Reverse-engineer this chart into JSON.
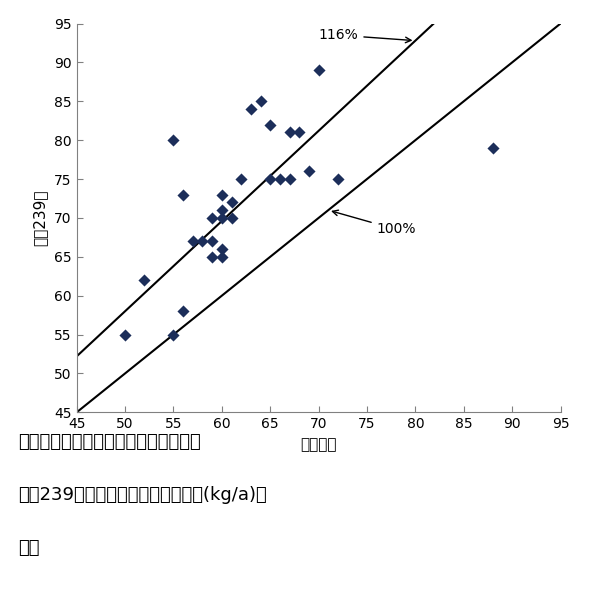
{
  "scatter_x": [
    50,
    52,
    55,
    55,
    56,
    56,
    57,
    58,
    59,
    59,
    59,
    60,
    60,
    60,
    60,
    60,
    61,
    61,
    62,
    63,
    64,
    65,
    65,
    66,
    67,
    67,
    68,
    69,
    70,
    72,
    88
  ],
  "scatter_y": [
    55,
    62,
    55,
    80,
    58,
    73,
    67,
    67,
    65,
    67,
    70,
    65,
    66,
    70,
    71,
    73,
    70,
    72,
    75,
    84,
    85,
    75,
    82,
    75,
    81,
    75,
    81,
    76,
    89,
    75,
    79
  ],
  "xlim": [
    45,
    95
  ],
  "ylim": [
    45,
    95
  ],
  "xticks": [
    45,
    50,
    55,
    60,
    65,
    70,
    75,
    80,
    85,
    90,
    95
  ],
  "yticks": [
    45,
    50,
    55,
    60,
    65,
    70,
    75,
    80,
    85,
    90,
    95
  ],
  "xlabel": "対照品種",
  "ylabel": "関東239号",
  "marker_color": "#1c2e5a",
  "line_color": "#000000",
  "annotation_116": "116%",
  "annotation_100": "100%",
  "caption_line1": "図１．奨励品種決定調査試験における",
  "caption_line2": "関東239号と対象品種との玄米収量(kg/a)の",
  "caption_line3": "比較",
  "fig_width": 5.9,
  "fig_height": 5.89,
  "font_size_tick": 10,
  "font_size_label": 11,
  "font_size_caption": 13
}
